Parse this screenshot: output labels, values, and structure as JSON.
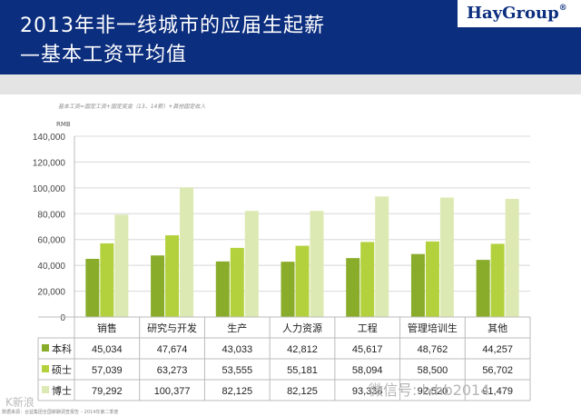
{
  "header": {
    "title_line1": "2013年非一线城市的应届生起薪",
    "title_line2": "—基本工资平均值",
    "logo": "HayGroup",
    "logo_mark": "®"
  },
  "formula_note": "基本工资=固定工资+固定奖金（13、14薪）+其他固定收入",
  "unit_label": "RMB",
  "footnote": "数据来源：合益集团全国薪酬调查报告 – 2014年第二季度",
  "watermarks": {
    "left": "K新浪",
    "right": "微信号: lxhb2014"
  },
  "colors": {
    "header_bg": "#0c2e7e",
    "bachelor": "#8aac2b",
    "master": "#b3d13c",
    "phd": "#dce9b2",
    "subheader": "#e4e4e4"
  },
  "chart_data": {
    "type": "bar",
    "ylabel": "RMB",
    "ylim": [
      0,
      140000
    ],
    "yticks": [
      "0",
      "20,000",
      "40,000",
      "60,000",
      "80,000",
      "100,000",
      "120,000",
      "140,000"
    ],
    "grid": true,
    "legend": "table-below",
    "categories": [
      "销售",
      "研究与开发",
      "生产",
      "人力资源",
      "工程",
      "管理培训生",
      "其他"
    ],
    "series": [
      {
        "name": "本科",
        "values": [
          45034,
          47674,
          43033,
          42812,
          45617,
          48762,
          44257
        ],
        "labels": [
          "45,034",
          "47,674",
          "43,033",
          "42,812",
          "45,617",
          "48,762",
          "44,257"
        ]
      },
      {
        "name": "硕士",
        "values": [
          57039,
          63273,
          53555,
          55181,
          58094,
          58500,
          56702
        ],
        "labels": [
          "57,039",
          "63,273",
          "53,555",
          "55,181",
          "58,094",
          "58,500",
          "56,702"
        ]
      },
      {
        "name": "博士",
        "values": [
          79292,
          100377,
          82125,
          82125,
          93338,
          92520,
          91479
        ],
        "labels": [
          "79,292",
          "100,377",
          "82,125",
          "82,125",
          "93,338",
          "92,520",
          "91,479"
        ]
      }
    ]
  }
}
